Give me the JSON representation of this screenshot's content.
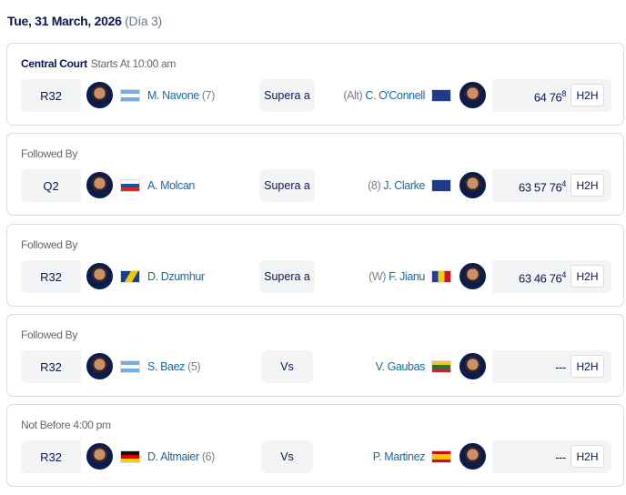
{
  "header": {
    "date": "Tue, 31 March, 2026",
    "day": "(Día 3)"
  },
  "matches": [
    {
      "court": "Central Court",
      "label": "Starts At 10:00 am",
      "round": "R32",
      "p1": {
        "name": "M. Navone",
        "seed": "(7)",
        "flag": "argentina"
      },
      "result": "Supera a",
      "p2": {
        "prefix": "(Alt)",
        "name": "C. O'Connell",
        "flag": "australia"
      },
      "score": "64 76",
      "tb": "8",
      "h2h": "H2H"
    },
    {
      "court": "",
      "label": "Followed By",
      "round": "Q2",
      "p1": {
        "name": "A. Molcan",
        "seed": "",
        "flag": "slovakia"
      },
      "result": "Supera a",
      "p2": {
        "prefix": "(8)",
        "name": "J. Clarke",
        "flag": "uk"
      },
      "score": "63 57 76",
      "tb": "4",
      "h2h": "H2H"
    },
    {
      "court": "",
      "label": "Followed By",
      "round": "R32",
      "p1": {
        "name": "D. Dzumhur",
        "seed": "",
        "flag": "bosnia"
      },
      "result": "Supera a",
      "p2": {
        "prefix": "(W)",
        "name": "F. Jianu",
        "flag": "romania"
      },
      "score": "63 46 76",
      "tb": "4",
      "h2h": "H2H"
    },
    {
      "court": "",
      "label": "Followed By",
      "round": "R32",
      "p1": {
        "name": "S. Baez",
        "seed": "(5)",
        "flag": "argentina"
      },
      "result": "Vs",
      "p2": {
        "prefix": "",
        "name": "V. Gaubas",
        "flag": "lithuania"
      },
      "score": "---",
      "tb": "",
      "h2h": "H2H"
    },
    {
      "court": "",
      "label": "Not Before 4:00 pm",
      "round": "R32",
      "p1": {
        "name": "D. Altmaier",
        "seed": "(6)",
        "flag": "germany"
      },
      "result": "Vs",
      "p2": {
        "prefix": "",
        "name": "P. Martinez",
        "flag": "spain"
      },
      "score": "---",
      "tb": "",
      "h2h": "H2H"
    }
  ]
}
